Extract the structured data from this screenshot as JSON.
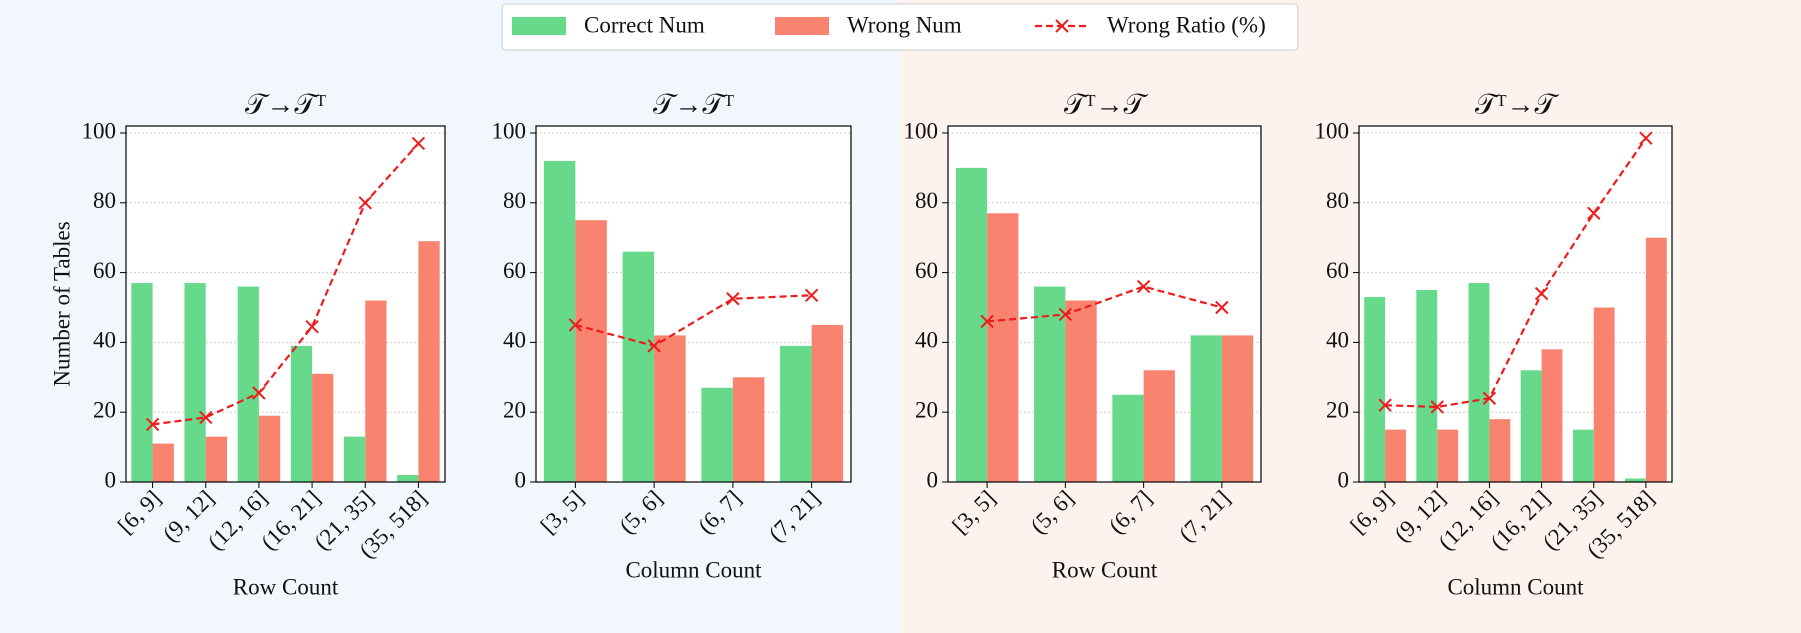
{
  "chart_data": [
    {
      "type": "bar",
      "title": "𝒯→𝒯ᵀ",
      "xlabel": "Row Count",
      "ylabel": "Number of Tables",
      "categories": [
        "[6, 9]",
        "(9, 12]",
        "(12, 16]",
        "(16, 21]",
        "(21, 35]",
        "(35, 518]"
      ],
      "series": [
        {
          "name": "Correct Num",
          "color": "#66d98b",
          "values": [
            57,
            57,
            56,
            39,
            13,
            2
          ]
        },
        {
          "name": "Wrong Num",
          "color": "#f8836f",
          "values": [
            11,
            13,
            19,
            31,
            52,
            69
          ]
        },
        {
          "name": "Wrong Ratio (%)",
          "color": "#ee1c1c",
          "type": "line",
          "values": [
            16.5,
            18.5,
            25.5,
            44.5,
            80,
            97
          ]
        }
      ],
      "ylim": [
        0,
        102
      ],
      "yticks": [
        0,
        20,
        40,
        60,
        80,
        100
      ],
      "grid": true,
      "background": "#f1f7fd"
    },
    {
      "type": "bar",
      "title": "𝒯→𝒯ᵀ",
      "xlabel": "Column Count",
      "categories": [
        "[3, 5]",
        "(5, 6]",
        "(6, 7]",
        "(7, 21]"
      ],
      "series": [
        {
          "color": "#66d98b",
          "values": [
            92,
            66,
            27,
            39
          ]
        },
        {
          "color": "#f8836f",
          "values": [
            75,
            42,
            30,
            45
          ]
        },
        {
          "color": "#ee1c1c",
          "type": "line",
          "values": [
            45,
            39,
            52.5,
            53.5
          ]
        }
      ],
      "ylim": [
        0,
        102
      ],
      "yticks": [
        0,
        20,
        40,
        60,
        80,
        100
      ],
      "grid": true,
      "background": "#f1f7fd"
    },
    {
      "type": "bar",
      "title": "𝒯ᵀ→𝒯",
      "xlabel": "Row Count",
      "categories": [
        "[3, 5]",
        "(5, 6]",
        "(6, 7]",
        "(7, 21]"
      ],
      "series": [
        {
          "color": "#66d98b",
          "values": [
            90,
            56,
            25,
            42
          ]
        },
        {
          "color": "#f8836f",
          "values": [
            77,
            52,
            32,
            42
          ]
        },
        {
          "color": "#ee1c1c",
          "type": "line",
          "values": [
            46,
            48,
            56,
            50
          ]
        }
      ],
      "ylim": [
        0,
        102
      ],
      "yticks": [
        0,
        20,
        40,
        60,
        80,
        100
      ],
      "grid": true,
      "background": "#fdf3ee"
    },
    {
      "type": "bar",
      "title": "𝒯ᵀ→𝒯",
      "xlabel": "Column Count",
      "categories": [
        "[6, 9]",
        "(9, 12]",
        "(12, 16]",
        "(16, 21]",
        "(21, 35]",
        "(35, 518]"
      ],
      "series": [
        {
          "color": "#66d98b",
          "values": [
            53,
            55,
            57,
            32,
            15,
            1
          ]
        },
        {
          "color": "#f8836f",
          "values": [
            15,
            15,
            18,
            38,
            50,
            70
          ]
        },
        {
          "color": "#ee1c1c",
          "type": "line",
          "values": [
            22,
            21.5,
            24,
            54,
            77,
            98.5
          ]
        }
      ],
      "ylim": [
        0,
        102
      ],
      "yticks": [
        0,
        20,
        40,
        60,
        80,
        100
      ],
      "grid": true,
      "background": "#fdf3ee"
    }
  ]
}
